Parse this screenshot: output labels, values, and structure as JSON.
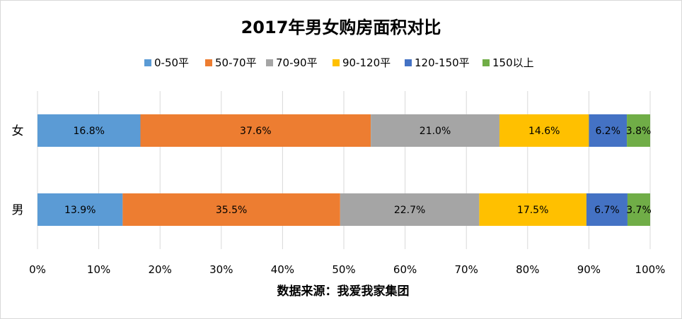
{
  "chart_data": {
    "type": "bar",
    "orientation": "horizontal",
    "stacked": true,
    "percent_stacked": true,
    "title": "2017年男女购房面积对比",
    "xlabel": "数据来源：我爱我家集团",
    "ylabel": "",
    "categories": [
      "女",
      "男"
    ],
    "xlim": [
      0,
      100
    ],
    "x_ticks": [
      "0%",
      "10%",
      "20%",
      "30%",
      "40%",
      "50%",
      "60%",
      "70%",
      "80%",
      "90%",
      "100%"
    ],
    "grid": true,
    "legend_position": "top",
    "series": [
      {
        "name": "0-50平",
        "color": "#5B9BD5",
        "values": [
          16.8,
          13.9
        ],
        "labels": [
          "16.8%",
          "13.9%"
        ]
      },
      {
        "name": "50-70平",
        "color": "#ED7D31",
        "values": [
          37.6,
          35.5
        ],
        "labels": [
          "37.6%",
          "35.5%"
        ]
      },
      {
        "name": "70-90平",
        "color": "#A5A5A5",
        "values": [
          21.0,
          22.7
        ],
        "labels": [
          "21.0%",
          "22.7%"
        ]
      },
      {
        "name": "90-120平",
        "color": "#FFC000",
        "values": [
          14.6,
          17.5
        ],
        "labels": [
          "14.6%",
          "17.5%"
        ]
      },
      {
        "name": "120-150平",
        "color": "#4472C4",
        "values": [
          6.2,
          6.7
        ],
        "labels": [
          "6.2%",
          "6.7%"
        ]
      },
      {
        "name": "150以上",
        "color": "#70AD47",
        "values": [
          3.8,
          3.7
        ],
        "labels": [
          "3.8%",
          "3.7%"
        ]
      }
    ]
  }
}
